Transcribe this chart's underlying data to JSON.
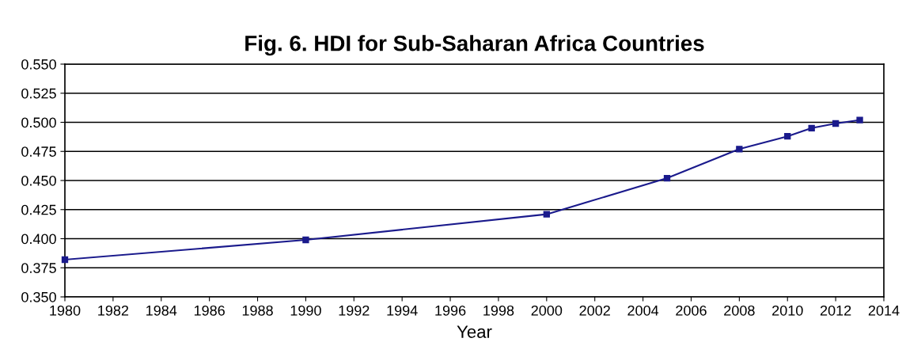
{
  "chart_data": {
    "type": "line",
    "title": "Fig. 6. HDI for Sub-Saharan Africa Countries",
    "xlabel": "Year",
    "x": [
      1980,
      1990,
      2000,
      2005,
      2008,
      2010,
      2011,
      2012,
      2013
    ],
    "series": [
      {
        "color": "#1a1a8c",
        "values": [
          0.382,
          0.399,
          0.421,
          0.452,
          0.477,
          0.488,
          0.495,
          0.499,
          0.502
        ]
      }
    ],
    "xlim": [
      1980,
      2014
    ],
    "xticks": [
      1980,
      1982,
      1984,
      1986,
      1988,
      1990,
      1992,
      1994,
      1996,
      1998,
      2000,
      2002,
      2004,
      2006,
      2008,
      2010,
      2012,
      2014
    ],
    "ylim": [
      0.35,
      0.55
    ],
    "yticks": [
      {
        "value": 0.35,
        "label": "0.350"
      },
      {
        "value": 0.375,
        "label": "0.375"
      },
      {
        "value": 0.4,
        "label": "0.400"
      },
      {
        "value": 0.425,
        "label": "0.425"
      },
      {
        "value": 0.45,
        "label": "0.450"
      },
      {
        "value": 0.475,
        "label": "0.475"
      },
      {
        "value": 0.5,
        "label": "0.500"
      },
      {
        "value": 0.525,
        "label": "0.525"
      },
      {
        "value": 0.55,
        "label": "0.550"
      }
    ],
    "grid": "y",
    "marker": "square",
    "line_style": "solid",
    "legend": false
  }
}
